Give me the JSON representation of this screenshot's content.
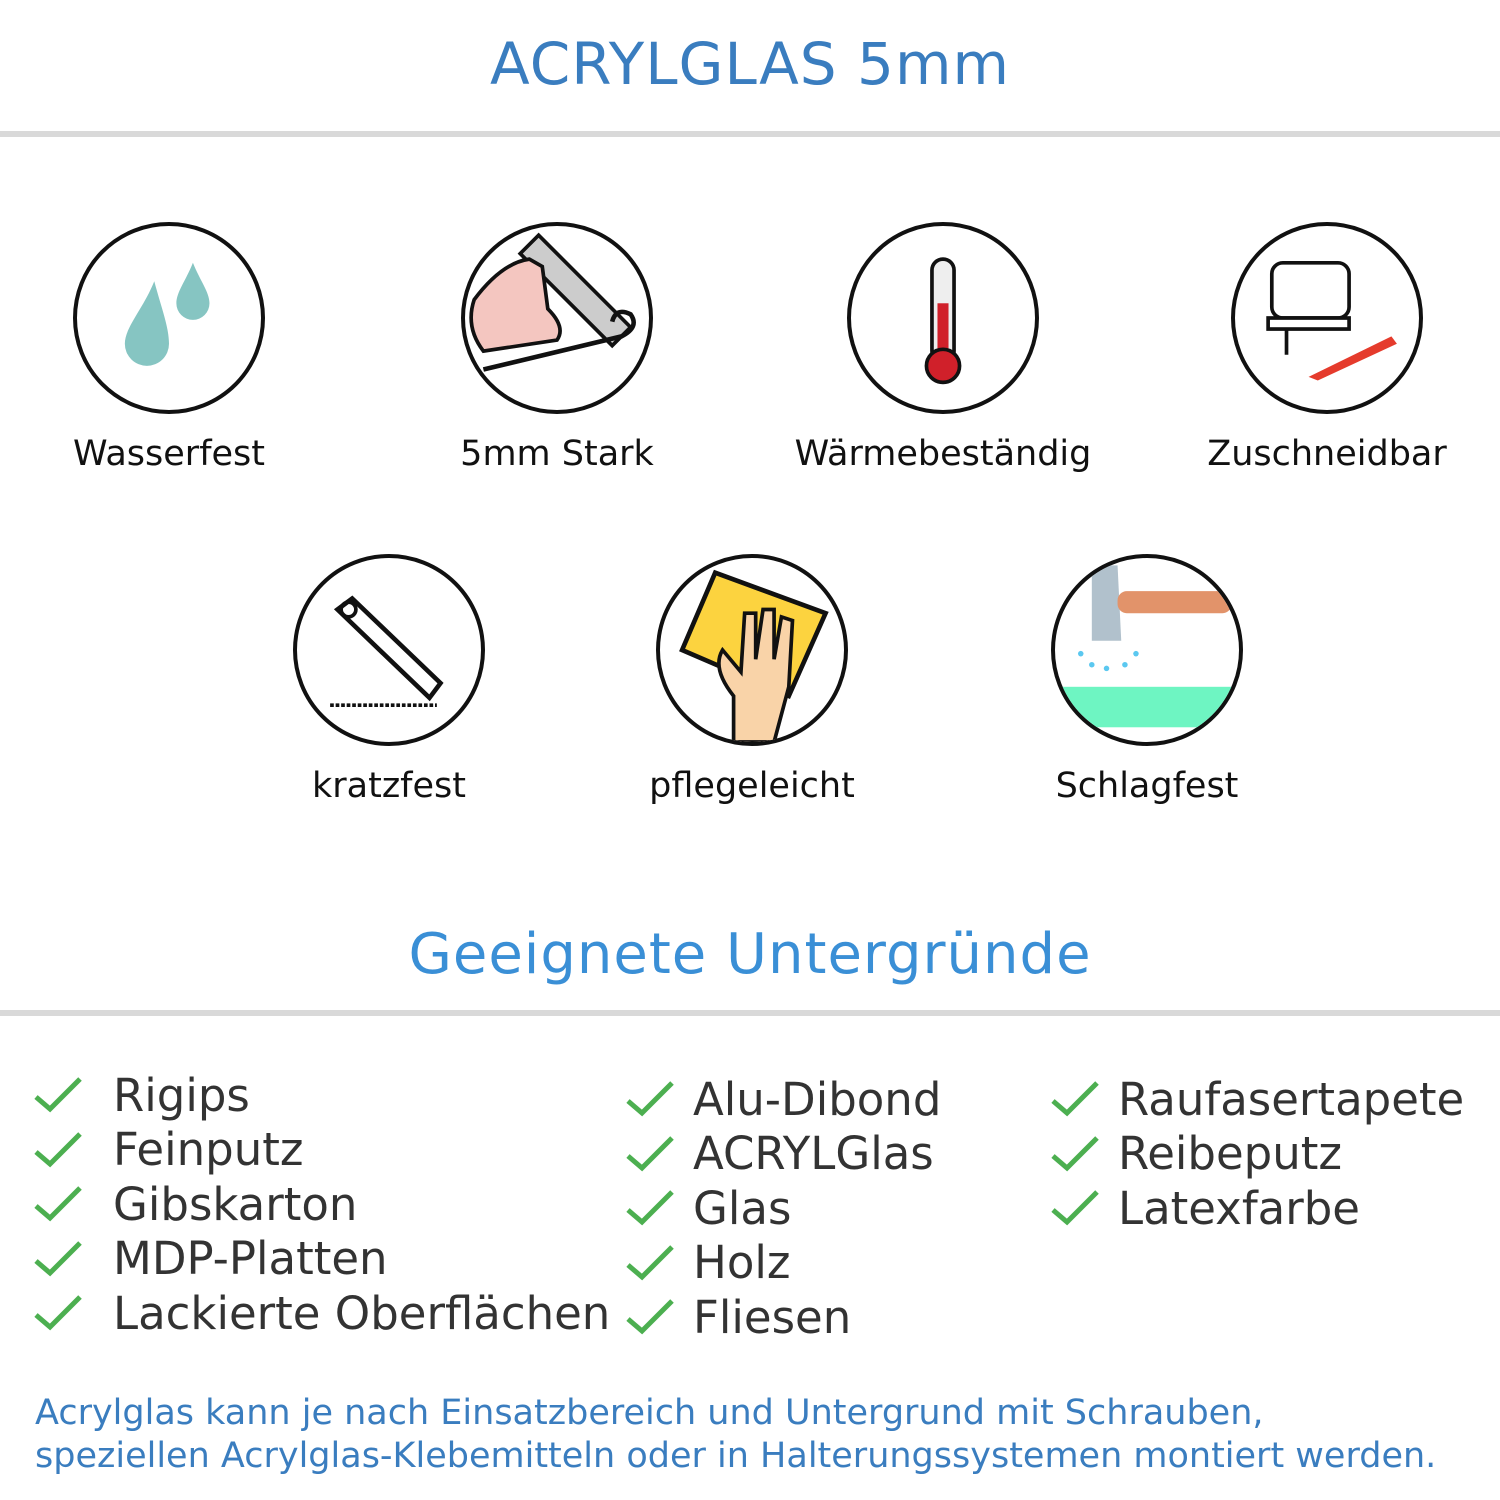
{
  "title": "ACRYLGLAS 5mm",
  "features": [
    {
      "label": "Wasserfest",
      "icon": "water-drops-icon"
    },
    {
      "label": "5mm Stark",
      "icon": "strong-arm-icon"
    },
    {
      "label": "Wärmebeständig",
      "icon": "thermometer-icon"
    },
    {
      "label": "Zuschneidbar",
      "icon": "jigsaw-icon"
    },
    {
      "label": "kratzfest",
      "icon": "cutter-knife-icon"
    },
    {
      "label": "pflegeleicht",
      "icon": "cleaning-cloth-icon"
    },
    {
      "label": "Schlagfest",
      "icon": "hammer-icon"
    }
  ],
  "surfaces_title": "Geeignete Untergründe",
  "surfaces": {
    "col1": [
      "Rigips",
      "Feinputz",
      "Gibskarton",
      "MDP-Platten",
      "Lackierte Oberflächen"
    ],
    "col2": [
      "Alu-Dibond",
      "ACRYLGlas",
      "Glas",
      "Holz",
      "Fliesen"
    ],
    "col3": [
      "Raufasertapete",
      "Reibeputz",
      "Latexfarbe"
    ]
  },
  "footer": {
    "line1": "Acrylglas kann je nach Einsatzbereich und Untergrund mit Schrauben,",
    "line2": "speziellen Acrylglas-Klebemitteln oder in Halterungssystemen montiert werden."
  },
  "colors": {
    "title": "#3a7dbf",
    "subtitle": "#3a8fd6",
    "check": "#4caf50",
    "divider": "#d9d9d9"
  }
}
